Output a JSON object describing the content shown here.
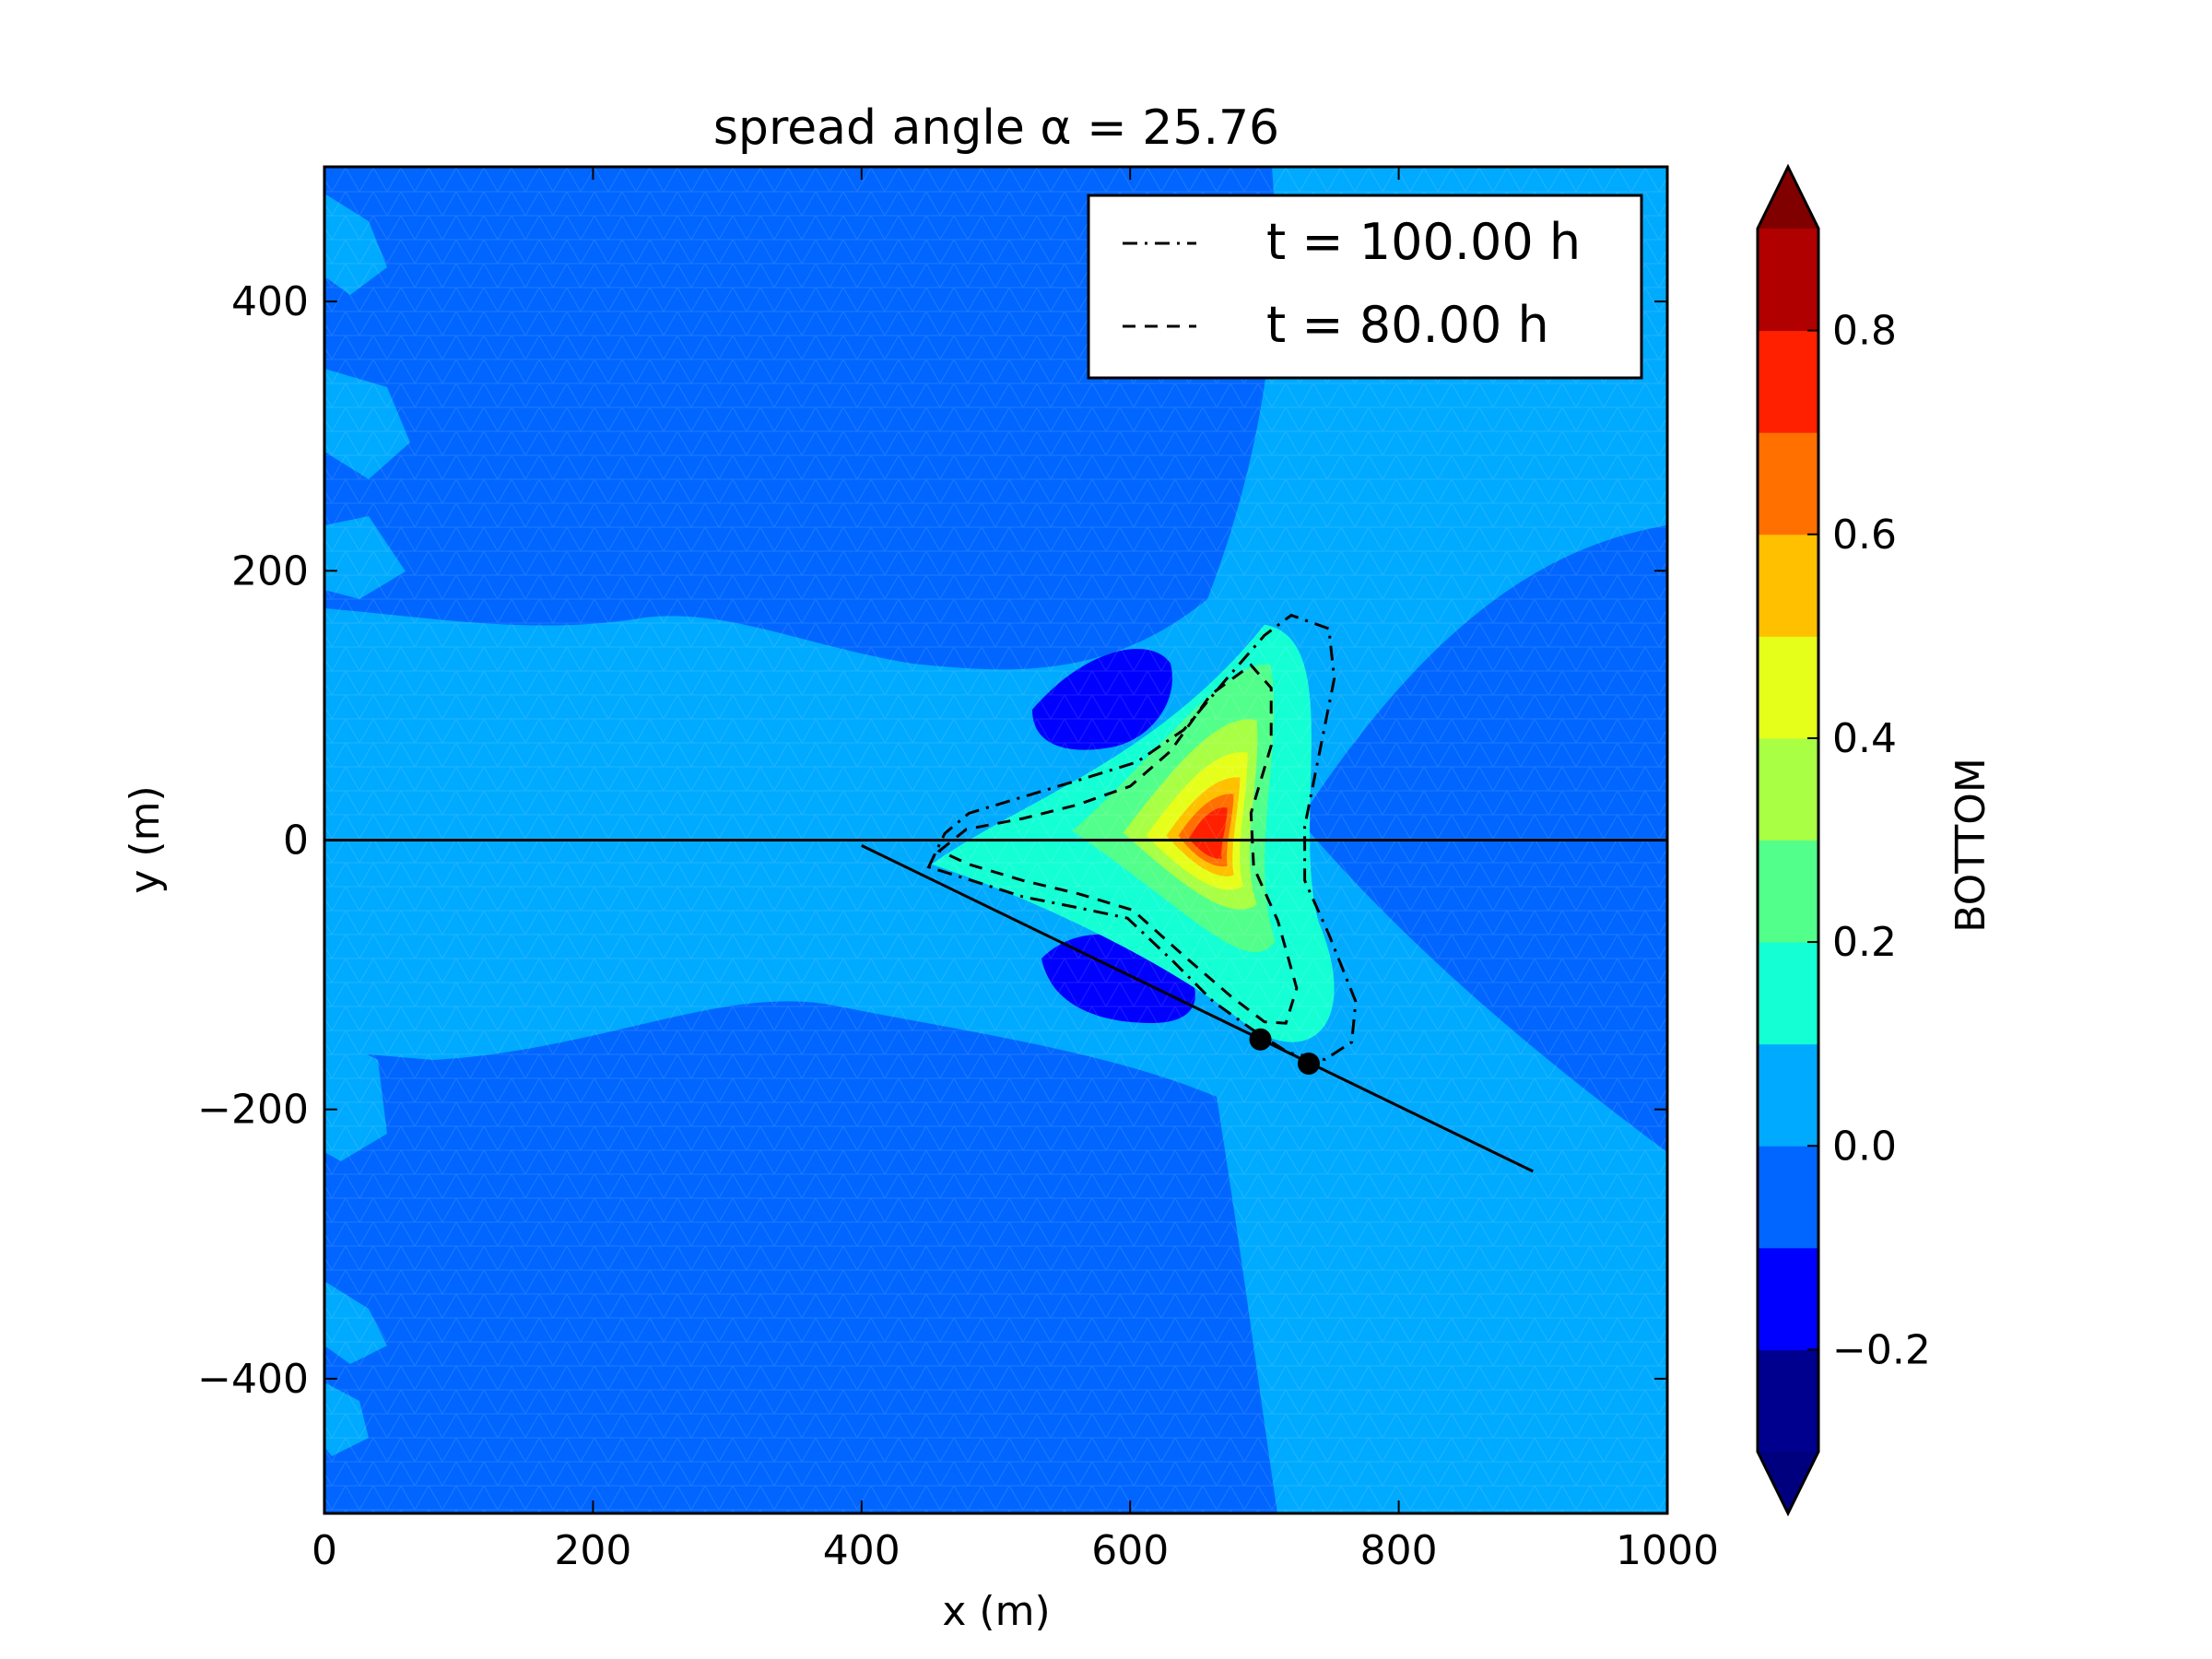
{
  "chart_data": {
    "type": "heatmap",
    "title": "spread angle α = 25.76",
    "xlabel": "x (m)",
    "ylabel": "y (m)",
    "xlim": [
      0,
      1000
    ],
    "ylim": [
      -500,
      500
    ],
    "x_ticks": [
      0,
      200,
      400,
      600,
      800,
      1000
    ],
    "y_ticks": [
      -400,
      -200,
      0,
      200,
      400
    ],
    "x_tick_labels": [
      "0",
      "200",
      "400",
      "600",
      "800",
      "1000"
    ],
    "y_tick_labels": [
      "−400",
      "−200",
      "0",
      "200",
      "400"
    ],
    "grid": false,
    "colorbar": {
      "label": "BOTTOM",
      "range": [
        -0.3,
        0.9
      ],
      "levels": [
        -0.3,
        -0.2,
        -0.1,
        0.0,
        0.1,
        0.2,
        0.3,
        0.4,
        0.5,
        0.6,
        0.7,
        0.8,
        0.9
      ],
      "colors": [
        "#00008f",
        "#0000ff",
        "#0066ff",
        "#00aaff",
        "#14ffd4",
        "#52ff8a",
        "#a8ff44",
        "#e6ff1a",
        "#ffc000",
        "#ff7000",
        "#ff2000",
        "#b00000"
      ],
      "under_color": "#00007f",
      "over_color": "#800000",
      "ticks": [
        -0.2,
        0.0,
        0.2,
        0.4,
        0.6,
        0.8
      ],
      "tick_labels": [
        "−0.2",
        "0.0",
        "0.2",
        "0.4",
        "0.6",
        "0.8"
      ],
      "extend": "both"
    },
    "legend": {
      "placement": "top-right",
      "entries": [
        {
          "label": "t = 100.00 h",
          "linestyle": "dashdot"
        },
        {
          "label": "t = 80.00 h",
          "linestyle": "dashed"
        }
      ]
    },
    "contour_100h": [
      [
        450,
        -20
      ],
      [
        462,
        5
      ],
      [
        480,
        20
      ],
      [
        520,
        32
      ],
      [
        560,
        44
      ],
      [
        605,
        58
      ],
      [
        640,
        82
      ],
      [
        672,
        120
      ],
      [
        700,
        152
      ],
      [
        720,
        167
      ],
      [
        748,
        157
      ],
      [
        752,
        120
      ],
      [
        740,
        60
      ],
      [
        730,
        10
      ],
      [
        730,
        -30
      ],
      [
        748,
        -70
      ],
      [
        768,
        -120
      ],
      [
        765,
        -150
      ],
      [
        745,
        -163
      ],
      [
        718,
        -158
      ],
      [
        690,
        -140
      ],
      [
        662,
        -120
      ],
      [
        632,
        -90
      ],
      [
        598,
        -58
      ],
      [
        560,
        -50
      ],
      [
        520,
        -42
      ],
      [
        482,
        -30
      ],
      [
        450,
        -20
      ]
    ],
    "contour_80h": [
      [
        458,
        -8
      ],
      [
        478,
        8
      ],
      [
        520,
        16
      ],
      [
        560,
        26
      ],
      [
        600,
        40
      ],
      [
        630,
        66
      ],
      [
        660,
        108
      ],
      [
        690,
        130
      ],
      [
        705,
        113
      ],
      [
        705,
        70
      ],
      [
        690,
        20
      ],
      [
        692,
        -20
      ],
      [
        710,
        -60
      ],
      [
        724,
        -110
      ],
      [
        716,
        -136
      ],
      [
        700,
        -135
      ],
      [
        675,
        -116
      ],
      [
        640,
        -86
      ],
      [
        602,
        -52
      ],
      [
        562,
        -40
      ],
      [
        520,
        -30
      ],
      [
        480,
        -18
      ],
      [
        458,
        -8
      ]
    ],
    "horizontal_line": {
      "y": 0,
      "x": [
        0,
        1000
      ]
    },
    "angled_line": {
      "from": [
        400,
        -4
      ],
      "to": [
        900,
        -246
      ]
    },
    "points": [
      [
        697,
        -148
      ],
      [
        733,
        -166
      ]
    ]
  }
}
